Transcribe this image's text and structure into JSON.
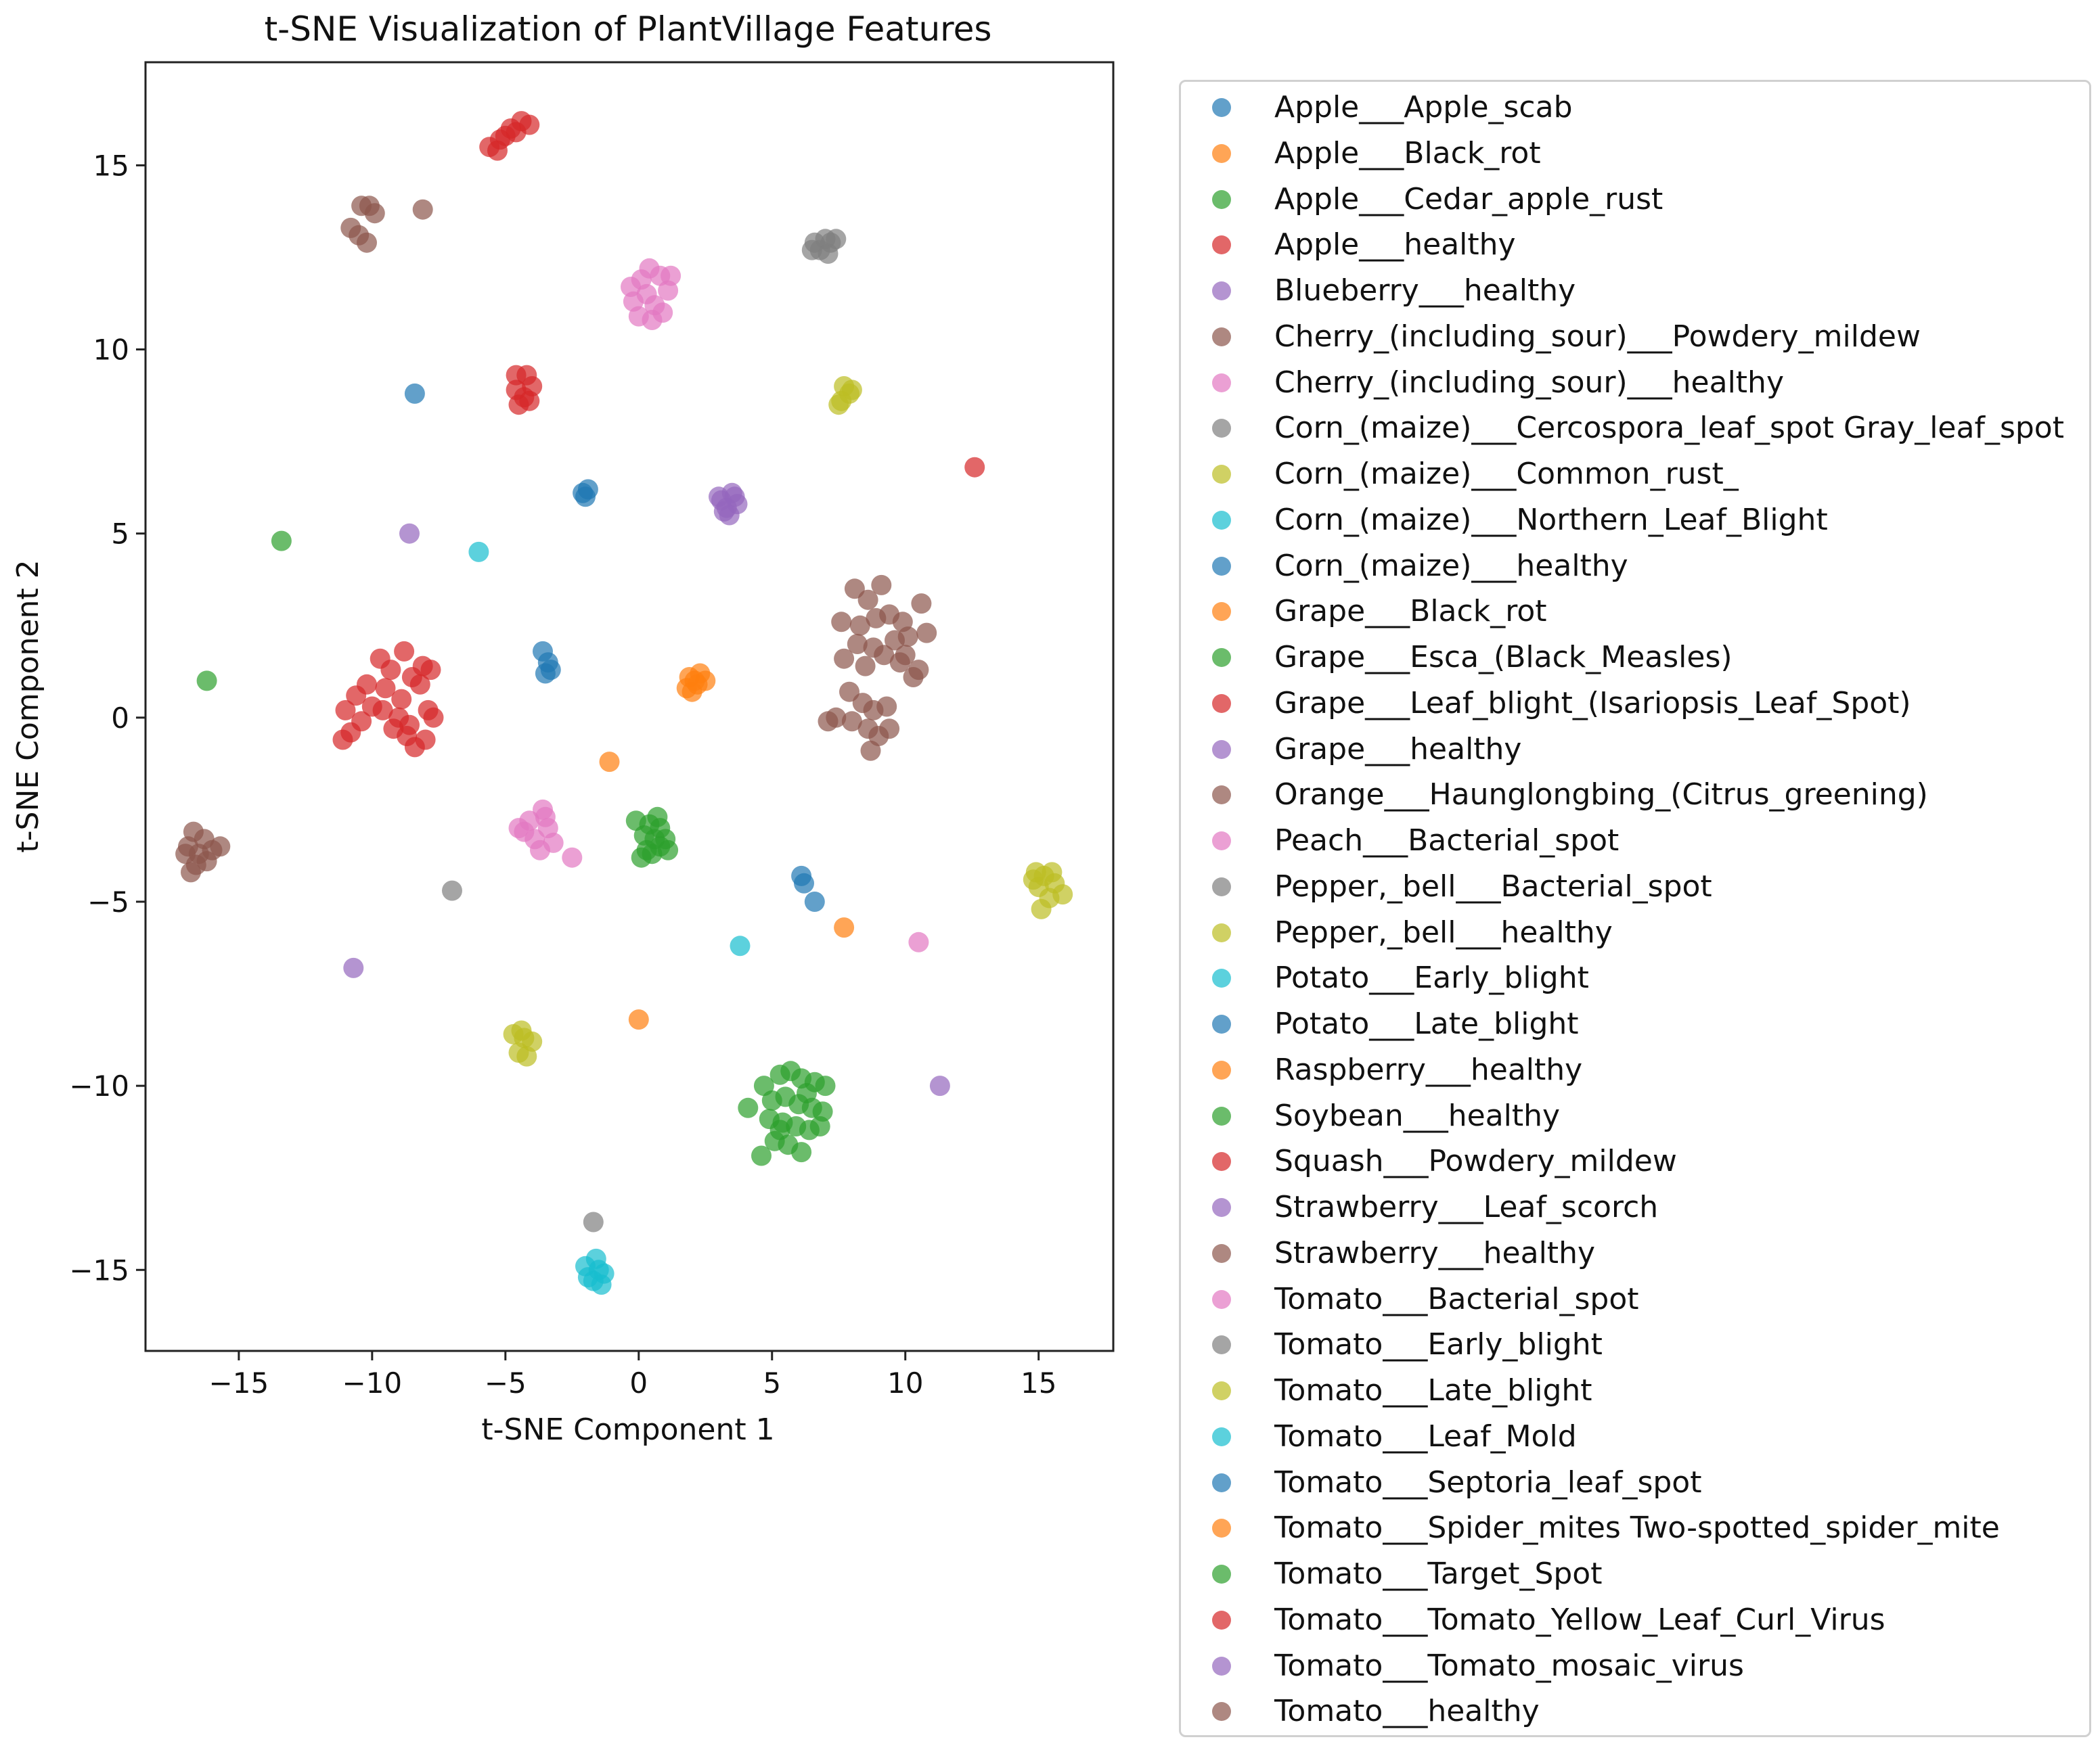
{
  "chart_data": {
    "type": "scatter",
    "title": "t-SNE Visualization of PlantVillage Features",
    "xlabel": "t-SNE Component 1",
    "ylabel": "t-SNE Component 2",
    "xlim": [
      -18.5,
      17.8
    ],
    "ylim": [
      -17.2,
      17.8
    ],
    "xticks": [
      -15,
      -10,
      -5,
      0,
      5,
      10,
      15
    ],
    "xtick_labels": [
      "−15",
      "−10",
      "−5",
      "0",
      "5",
      "10",
      "15"
    ],
    "yticks": [
      -15,
      -10,
      -5,
      0,
      5,
      10,
      15
    ],
    "ytick_labels": [
      "−15",
      "−10",
      "−5",
      "0",
      "5",
      "10",
      "15"
    ],
    "grid": false,
    "legend_position": "outside-right",
    "series": [
      {
        "name": "Apple___Apple_scab",
        "color": "#1f77b4",
        "points": [
          [
            -8.4,
            8.8
          ]
        ]
      },
      {
        "name": "Apple___Black_rot",
        "color": "#ff7f0e",
        "points": [
          [
            -1.1,
            -1.2
          ]
        ]
      },
      {
        "name": "Apple___Cedar_apple_rust",
        "color": "#2ca02c",
        "points": [
          [
            -13.4,
            4.8
          ]
        ]
      },
      {
        "name": "Apple___healthy",
        "color": "#d62728",
        "points": [
          [
            12.6,
            6.8
          ]
        ]
      },
      {
        "name": "Blueberry___healthy",
        "color": "#9467bd",
        "points": [
          [
            -8.6,
            5.0
          ]
        ]
      },
      {
        "name": "Cherry_(including_sour)___Powdery_mildew",
        "color": "#8c564b",
        "points": [
          [
            -10.4,
            13.9
          ],
          [
            -10.1,
            13.9
          ],
          [
            -9.9,
            13.7
          ],
          [
            -10.8,
            13.3
          ],
          [
            -10.5,
            13.1
          ],
          [
            -10.2,
            12.9
          ],
          [
            -8.1,
            13.8
          ]
        ]
      },
      {
        "name": "Cherry_(including_sour)___healthy",
        "color": "#e377c2",
        "points": [
          [
            0.4,
            12.2
          ],
          [
            0.1,
            11.9
          ],
          [
            0.8,
            12.0
          ],
          [
            1.1,
            11.6
          ],
          [
            0.3,
            11.5
          ],
          [
            -0.2,
            11.3
          ],
          [
            0.6,
            11.2
          ],
          [
            0.9,
            11.0
          ],
          [
            0.0,
            10.9
          ],
          [
            0.5,
            10.8
          ],
          [
            -0.3,
            11.7
          ],
          [
            1.2,
            12.0
          ]
        ]
      },
      {
        "name": "Corn_(maize)___Cercospora_leaf_spot Gray_leaf_spot",
        "color": "#7f7f7f",
        "points": [
          [
            6.6,
            12.9
          ],
          [
            7.0,
            13.0
          ],
          [
            7.4,
            13.0
          ],
          [
            6.8,
            12.7
          ],
          [
            7.1,
            12.6
          ],
          [
            6.5,
            12.7
          ],
          [
            7.2,
            12.9
          ]
        ]
      },
      {
        "name": "Corn_(maize)___Common_rust_",
        "color": "#bcbd22",
        "points": [
          [
            7.6,
            8.6
          ],
          [
            7.9,
            8.8
          ],
          [
            7.7,
            9.0
          ],
          [
            8.0,
            8.9
          ],
          [
            7.5,
            8.5
          ]
        ]
      },
      {
        "name": "Corn_(maize)___Northern_Leaf_Blight",
        "color": "#17becf",
        "points": [
          [
            -6.0,
            4.5
          ]
        ]
      },
      {
        "name": "Corn_(maize)___healthy",
        "color": "#1f77b4",
        "points": [
          [
            -2.1,
            6.1
          ],
          [
            -1.9,
            6.2
          ],
          [
            -2.0,
            6.0
          ]
        ]
      },
      {
        "name": "Grape___Black_rot",
        "color": "#ff7f0e",
        "points": [
          [
            1.8,
            0.8
          ],
          [
            2.1,
            1.0
          ],
          [
            2.3,
            1.2
          ],
          [
            1.9,
            1.1
          ],
          [
            2.5,
            1.0
          ],
          [
            2.0,
            0.7
          ],
          [
            2.2,
            0.9
          ]
        ]
      },
      {
        "name": "Grape___Esca_(Black_Measles)",
        "color": "#2ca02c",
        "points": [
          [
            -16.2,
            1.0
          ]
        ]
      },
      {
        "name": "Grape___Leaf_blight_(Isariopsis_Leaf_Spot)",
        "color": "#d62728",
        "points": [
          [
            -11.0,
            0.2
          ],
          [
            -10.6,
            0.6
          ],
          [
            -10.2,
            0.9
          ],
          [
            -9.7,
            1.6
          ],
          [
            -9.3,
            1.3
          ],
          [
            -8.8,
            1.8
          ],
          [
            -8.5,
            1.1
          ],
          [
            -8.1,
            1.4
          ],
          [
            -7.8,
            1.3
          ],
          [
            -8.2,
            0.9
          ],
          [
            -8.9,
            0.5
          ],
          [
            -9.5,
            0.8
          ],
          [
            -10.0,
            0.3
          ],
          [
            -10.4,
            -0.1
          ],
          [
            -9.2,
            -0.3
          ],
          [
            -8.6,
            -0.2
          ],
          [
            -8.0,
            -0.6
          ],
          [
            -7.9,
            0.2
          ],
          [
            -8.4,
            -0.8
          ],
          [
            -9.0,
            0.0
          ],
          [
            -10.8,
            -0.4
          ],
          [
            -11.1,
            -0.6
          ],
          [
            -9.6,
            0.2
          ],
          [
            -8.7,
            -0.5
          ],
          [
            -7.7,
            0.0
          ]
        ]
      },
      {
        "name": "Grape___healthy",
        "color": "#9467bd",
        "points": [
          [
            3.1,
            5.9
          ],
          [
            3.5,
            6.1
          ],
          [
            3.3,
            5.7
          ],
          [
            3.7,
            5.8
          ],
          [
            3.0,
            6.0
          ],
          [
            3.4,
            5.5
          ],
          [
            3.6,
            6.0
          ],
          [
            3.2,
            5.6
          ]
        ]
      },
      {
        "name": "Orange___Haunglongbing_(Citrus_greening)",
        "color": "#8c564b",
        "points": [
          [
            8.1,
            3.5
          ],
          [
            8.6,
            3.2
          ],
          [
            9.1,
            3.6
          ],
          [
            7.6,
            2.6
          ],
          [
            8.3,
            2.5
          ],
          [
            8.9,
            2.7
          ],
          [
            9.4,
            2.8
          ],
          [
            9.9,
            2.6
          ],
          [
            10.6,
            3.1
          ],
          [
            10.8,
            2.3
          ],
          [
            10.1,
            2.2
          ],
          [
            9.6,
            2.1
          ],
          [
            8.8,
            1.9
          ],
          [
            8.2,
            2.0
          ],
          [
            7.7,
            1.6
          ],
          [
            8.5,
            1.4
          ],
          [
            9.2,
            1.7
          ],
          [
            9.8,
            1.5
          ],
          [
            10.3,
            1.1
          ],
          [
            10.5,
            1.3
          ],
          [
            7.9,
            0.7
          ],
          [
            8.4,
            0.4
          ],
          [
            8.8,
            0.2
          ],
          [
            9.3,
            0.3
          ],
          [
            8.0,
            -0.1
          ],
          [
            8.6,
            -0.3
          ],
          [
            9.0,
            -0.5
          ],
          [
            7.4,
            0.0
          ],
          [
            7.1,
            -0.1
          ],
          [
            8.7,
            -0.9
          ],
          [
            9.4,
            -0.3
          ],
          [
            10.0,
            1.7
          ]
        ]
      },
      {
        "name": "Peach___Bacterial_spot",
        "color": "#e377c2",
        "points": [
          [
            -4.5,
            -3.0
          ],
          [
            -4.1,
            -2.8
          ],
          [
            -3.6,
            -2.5
          ],
          [
            -3.4,
            -3.0
          ],
          [
            -3.9,
            -3.3
          ],
          [
            -3.2,
            -3.4
          ],
          [
            -3.7,
            -3.6
          ],
          [
            -4.3,
            -3.1
          ],
          [
            -2.5,
            -3.8
          ],
          [
            -3.5,
            -2.7
          ]
        ]
      },
      {
        "name": "Pepper,_bell___Bacterial_spot",
        "color": "#7f7f7f",
        "points": [
          [
            -7.0,
            -4.7
          ]
        ]
      },
      {
        "name": "Pepper,_bell___healthy",
        "color": "#bcbd22",
        "points": [
          [
            14.8,
            -4.4
          ],
          [
            15.2,
            -4.3
          ],
          [
            15.6,
            -4.5
          ],
          [
            15.9,
            -4.8
          ],
          [
            15.0,
            -4.6
          ],
          [
            15.4,
            -4.9
          ],
          [
            15.1,
            -5.2
          ],
          [
            14.9,
            -4.2
          ],
          [
            15.5,
            -4.2
          ]
        ]
      },
      {
        "name": "Potato___Early_blight",
        "color": "#17becf",
        "points": [
          [
            3.8,
            -6.2
          ]
        ]
      },
      {
        "name": "Potato___Late_blight",
        "color": "#1f77b4",
        "points": [
          [
            -3.6,
            1.8
          ],
          [
            -3.4,
            1.5
          ],
          [
            -3.5,
            1.2
          ],
          [
            -3.3,
            1.3
          ]
        ]
      },
      {
        "name": "Raspberry___healthy",
        "color": "#ff7f0e",
        "points": [
          [
            7.7,
            -5.7
          ]
        ]
      },
      {
        "name": "Soybean___healthy",
        "color": "#2ca02c",
        "points": [
          [
            -0.1,
            -2.8
          ],
          [
            0.4,
            -2.9
          ],
          [
            0.8,
            -3.0
          ],
          [
            0.2,
            -3.2
          ],
          [
            0.6,
            -3.3
          ],
          [
            1.0,
            -3.3
          ],
          [
            0.3,
            -3.6
          ],
          [
            0.8,
            -3.5
          ],
          [
            0.1,
            -3.8
          ],
          [
            0.5,
            -3.7
          ],
          [
            1.1,
            -3.6
          ],
          [
            0.7,
            -2.7
          ]
        ]
      },
      {
        "name": "Squash___Powdery_mildew",
        "color": "#d62728",
        "points": [
          [
            -5.6,
            15.5
          ],
          [
            -5.2,
            15.7
          ],
          [
            -4.8,
            16.0
          ],
          [
            -4.4,
            16.2
          ],
          [
            -4.1,
            16.1
          ],
          [
            -5.0,
            15.8
          ],
          [
            -5.3,
            15.4
          ],
          [
            -4.6,
            15.9
          ]
        ]
      },
      {
        "name": "Strawberry___Leaf_scorch",
        "color": "#9467bd",
        "points": [
          [
            11.3,
            -10.0
          ]
        ]
      },
      {
        "name": "Strawberry___healthy",
        "color": "#8c564b",
        "points": [
          [
            -16.7,
            -3.1
          ],
          [
            -16.3,
            -3.3
          ],
          [
            -16.0,
            -3.6
          ],
          [
            -16.9,
            -3.5
          ],
          [
            -16.5,
            -3.7
          ],
          [
            -15.7,
            -3.5
          ],
          [
            -16.6,
            -4.0
          ],
          [
            -16.2,
            -3.9
          ],
          [
            -16.8,
            -4.2
          ],
          [
            -17.0,
            -3.7
          ]
        ]
      },
      {
        "name": "Tomato___Bacterial_spot",
        "color": "#e377c2",
        "points": [
          [
            10.5,
            -6.1
          ]
        ]
      },
      {
        "name": "Tomato___Early_blight",
        "color": "#7f7f7f",
        "points": [
          [
            -1.7,
            -13.7
          ]
        ]
      },
      {
        "name": "Tomato___Late_blight",
        "color": "#bcbd22",
        "points": [
          [
            -4.7,
            -8.6
          ],
          [
            -4.3,
            -8.7
          ],
          [
            -4.0,
            -8.8
          ],
          [
            -4.5,
            -9.1
          ],
          [
            -4.2,
            -9.2
          ],
          [
            -4.4,
            -8.5
          ]
        ]
      },
      {
        "name": "Tomato___Leaf_Mold",
        "color": "#17becf",
        "points": [
          [
            -2.0,
            -14.9
          ],
          [
            -1.6,
            -14.7
          ],
          [
            -1.3,
            -15.1
          ],
          [
            -1.7,
            -15.3
          ],
          [
            -1.4,
            -15.4
          ],
          [
            -1.9,
            -15.2
          ],
          [
            -1.5,
            -15.0
          ]
        ]
      },
      {
        "name": "Tomato___Septoria_leaf_spot",
        "color": "#1f77b4",
        "points": [
          [
            6.1,
            -4.3
          ],
          [
            6.2,
            -4.5
          ],
          [
            6.6,
            -5.0
          ]
        ]
      },
      {
        "name": "Tomato___Spider_mites Two-spotted_spider_mite",
        "color": "#ff7f0e",
        "points": [
          [
            0.0,
            -8.2
          ]
        ]
      },
      {
        "name": "Tomato___Target_Spot",
        "color": "#2ca02c",
        "points": [
          [
            5.3,
            -9.7
          ],
          [
            5.7,
            -9.6
          ],
          [
            6.1,
            -9.8
          ],
          [
            6.6,
            -9.9
          ],
          [
            7.0,
            -10.0
          ],
          [
            4.7,
            -10.0
          ],
          [
            5.0,
            -10.4
          ],
          [
            5.5,
            -10.3
          ],
          [
            6.0,
            -10.5
          ],
          [
            6.5,
            -10.6
          ],
          [
            6.9,
            -10.7
          ],
          [
            4.1,
            -10.6
          ],
          [
            4.9,
            -10.9
          ],
          [
            5.4,
            -11.0
          ],
          [
            5.9,
            -11.1
          ],
          [
            6.4,
            -11.2
          ],
          [
            6.8,
            -11.1
          ],
          [
            5.1,
            -11.5
          ],
          [
            5.6,
            -11.6
          ],
          [
            6.1,
            -11.8
          ],
          [
            4.6,
            -11.9
          ],
          [
            5.3,
            -11.2
          ],
          [
            6.3,
            -10.2
          ]
        ]
      },
      {
        "name": "Tomato___Tomato_Yellow_Leaf_Curl_Virus",
        "color": "#d62728",
        "points": [
          [
            -4.6,
            9.3
          ],
          [
            -4.2,
            9.3
          ],
          [
            -4.0,
            9.0
          ],
          [
            -4.6,
            8.9
          ],
          [
            -4.3,
            8.7
          ],
          [
            -4.5,
            8.5
          ],
          [
            -4.1,
            8.6
          ]
        ]
      },
      {
        "name": "Tomato___Tomato_mosaic_virus",
        "color": "#9467bd",
        "points": [
          [
            -10.7,
            -6.8
          ]
        ]
      },
      {
        "name": "Tomato___healthy",
        "color": "#8c564b",
        "points": []
      }
    ]
  }
}
